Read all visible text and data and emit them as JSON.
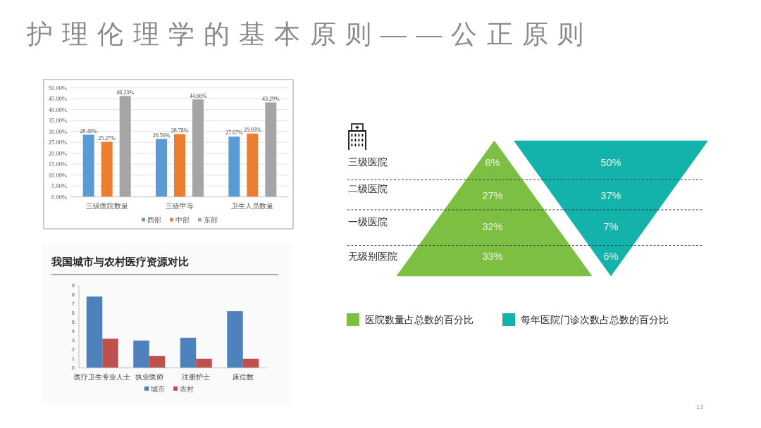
{
  "chart_data": [
    {
      "type": "other",
      "title": "护理伦理学的基本原则——公正原则",
      "annotations": [
        "13"
      ]
    },
    {
      "type": "bar",
      "categories": [
        "三级医院数量",
        "三级甲等",
        "卫生人员数量"
      ],
      "series": [
        {
          "name": "西部",
          "color": "#5b9bd5",
          "values": [
            28.49,
            26.56,
            27.67
          ],
          "value_labels": [
            "28.49%",
            "26.56%",
            "27.67%"
          ]
        },
        {
          "name": "中部",
          "color": "#ed7d31",
          "values": [
            25.27,
            28.78,
            29.03
          ],
          "value_labels": [
            "25.27%",
            "28.78%",
            "29.03%"
          ]
        },
        {
          "name": "东部",
          "color": "#a5a5a5",
          "values": [
            46.23,
            44.66,
            43.29
          ],
          "value_labels": [
            "46.23%",
            "44.66%",
            "43.29%"
          ]
        }
      ],
      "ylim": [
        0,
        50
      ],
      "yticks": [
        {
          "value": 0,
          "label": "0.00%"
        },
        {
          "value": 5,
          "label": "5.00%"
        },
        {
          "value": 10,
          "label": "10.00%"
        },
        {
          "value": 15,
          "label": "15.00%"
        },
        {
          "value": 20,
          "label": "20.00%"
        },
        {
          "value": 25,
          "label": "25.00%"
        },
        {
          "value": 30,
          "label": "30.00%"
        },
        {
          "value": 35,
          "label": "35.00%"
        },
        {
          "value": 40,
          "label": "40.00%"
        },
        {
          "value": 45,
          "label": "45.00%"
        },
        {
          "value": 50,
          "label": "50.00%"
        }
      ],
      "grid": "y",
      "legend": "bottom"
    },
    {
      "type": "bar",
      "title": "我国城市与农村医疗资源对比",
      "categories": [
        "医疗卫生专业人士",
        "执业医师",
        "注册护士",
        "床位数"
      ],
      "series": [
        {
          "name": "城市",
          "color": "#4f81bd",
          "values": [
            7.8,
            3.0,
            3.3,
            6.2
          ]
        },
        {
          "name": "农村",
          "color": "#c0504d",
          "values": [
            3.2,
            1.3,
            1.0,
            1.0
          ]
        }
      ],
      "ylim": [
        0,
        9
      ],
      "yticks": [
        0,
        1,
        2,
        3,
        4,
        5,
        6,
        7,
        8,
        9
      ],
      "legend": "bottom"
    },
    {
      "type": "other",
      "categories": [
        "三级医院",
        "二级医院",
        "一级医院",
        "无级别医院"
      ],
      "series": [
        {
          "name": "医院数量占总数的百分比",
          "color": "#7cbf42",
          "values": [
            8,
            27,
            32,
            33
          ],
          "value_labels": [
            "8%",
            "27%",
            "32%",
            "33%"
          ]
        },
        {
          "name": "每年医院门诊次数占总数的百分比",
          "color": "#13b2aa",
          "values": [
            50,
            37,
            7,
            6
          ],
          "value_labels": [
            "50%",
            "37%",
            "7%",
            "6%"
          ]
        }
      ],
      "legend": "bottom"
    }
  ]
}
